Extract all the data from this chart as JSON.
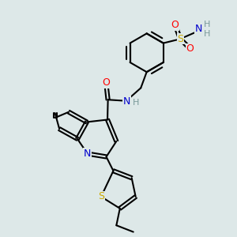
{
  "background_color": "#dde8e8",
  "atom_colors": {
    "C": "#000000",
    "N": "#0000cc",
    "O": "#ff0000",
    "S": "#ccaa00",
    "H": "#7a9a9a"
  },
  "bond_color": "#000000",
  "bond_width": 1.5,
  "figsize": [
    3.0,
    3.0
  ],
  "dpi": 100
}
